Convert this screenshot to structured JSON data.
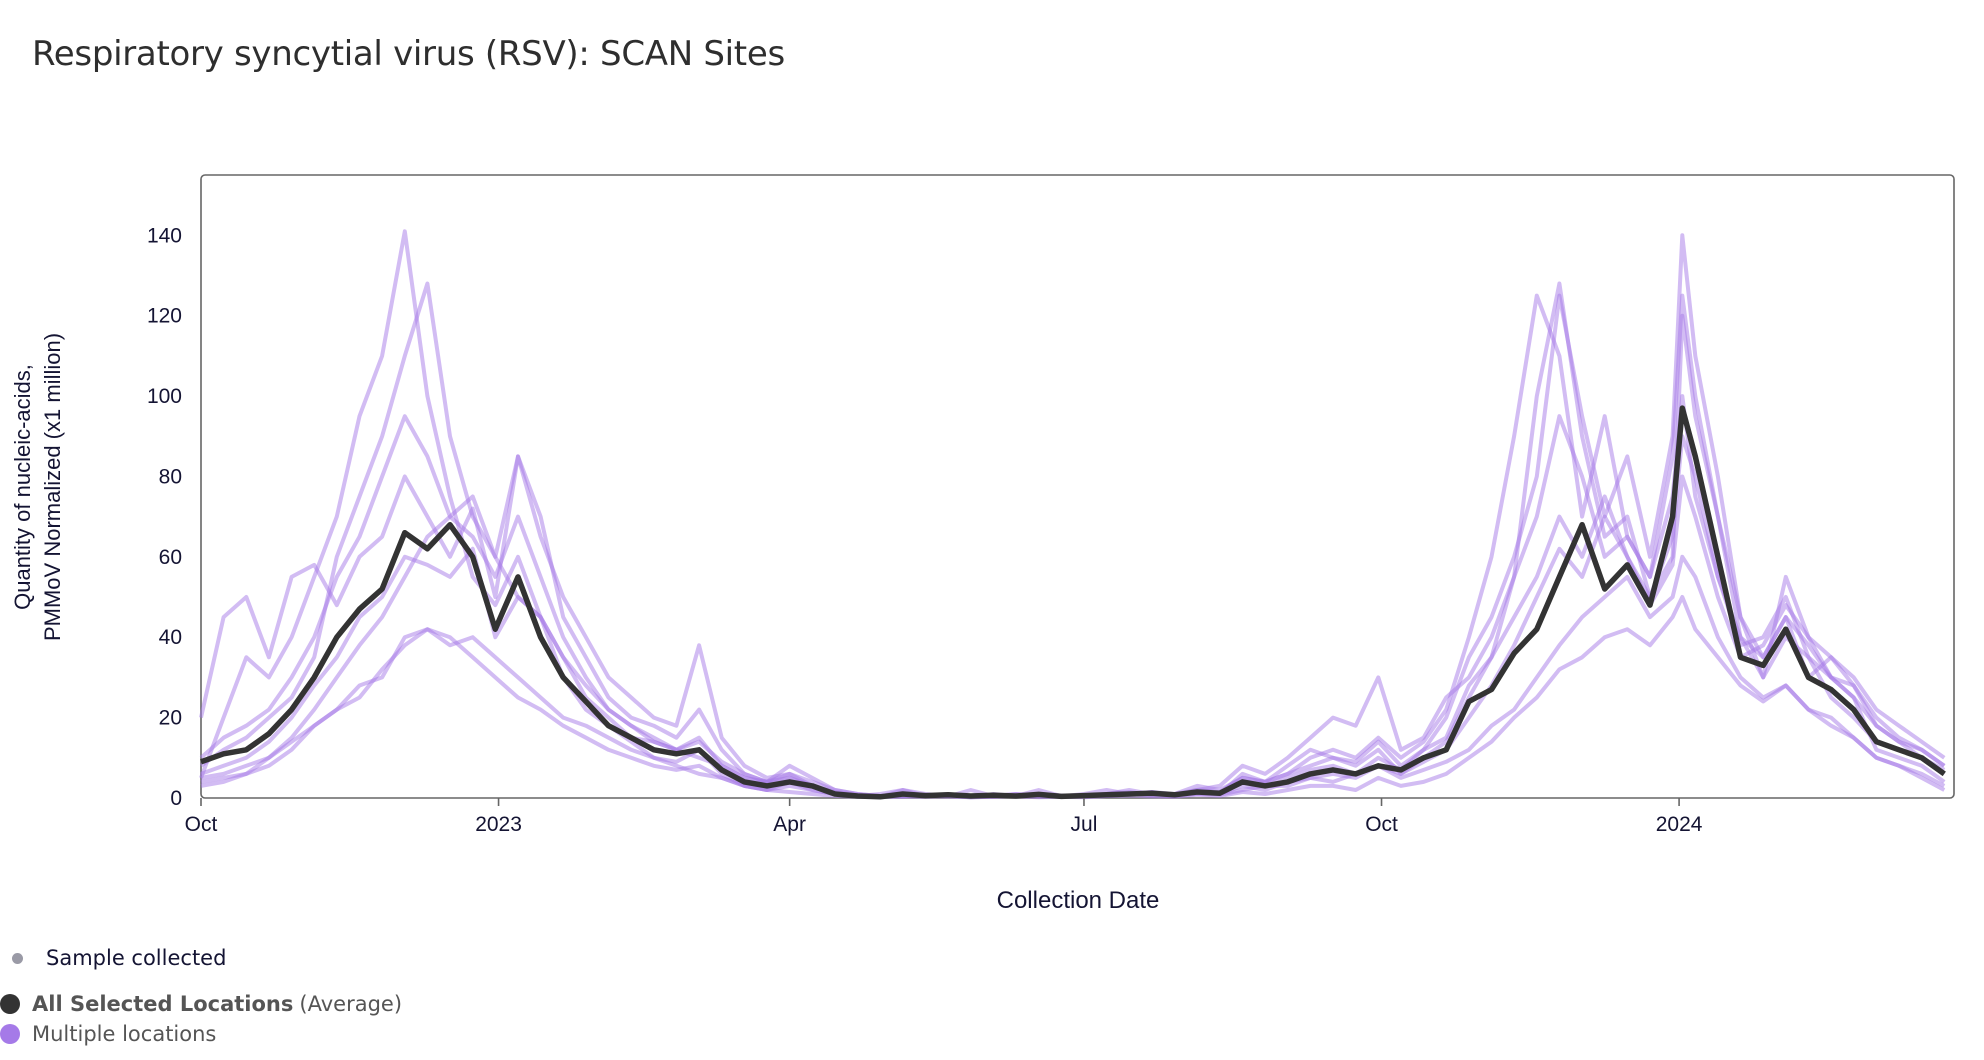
{
  "title": "Respiratory syncytial virus (RSV): SCAN Sites",
  "legend": {
    "sample_collected": "Sample collected",
    "average_bold": "All Selected Locations",
    "average_suffix": "(Average)",
    "multiple": "Multiple locations"
  },
  "colors": {
    "average": "#333333",
    "locations": "#a57ae8",
    "sample_dot": "#9a9aa6",
    "axis": "#666666"
  },
  "chart_data": {
    "type": "line",
    "xlabel": "Collection Date",
    "ylabel": [
      "Quantity of nucleic-acids,",
      "PMMoV Normalized (x1 million)"
    ],
    "ylim": [
      0,
      155
    ],
    "xlim": [
      "2022-10-01",
      "2024-03-26"
    ],
    "yticks": [
      0,
      20,
      40,
      60,
      80,
      100,
      120,
      140
    ],
    "xticks": [
      {
        "date": "2022-10-01",
        "label": "Oct"
      },
      {
        "date": "2023-01-01",
        "label": "2023"
      },
      {
        "date": "2023-04-01",
        "label": "Apr"
      },
      {
        "date": "2023-07-01",
        "label": "Jul"
      },
      {
        "date": "2023-10-01",
        "label": "Oct"
      },
      {
        "date": "2024-01-01",
        "label": "2024"
      }
    ],
    "grid": false,
    "legend_placement": "bottom-left",
    "x": [
      "2022-10-01",
      "2022-10-08",
      "2022-10-15",
      "2022-10-22",
      "2022-10-29",
      "2022-11-05",
      "2022-11-12",
      "2022-11-19",
      "2022-11-26",
      "2022-12-03",
      "2022-12-10",
      "2022-12-17",
      "2022-12-24",
      "2022-12-31",
      "2023-01-07",
      "2023-01-14",
      "2023-01-21",
      "2023-01-28",
      "2023-02-04",
      "2023-02-11",
      "2023-02-18",
      "2023-02-25",
      "2023-03-04",
      "2023-03-11",
      "2023-03-18",
      "2023-03-25",
      "2023-04-01",
      "2023-04-08",
      "2023-04-15",
      "2023-04-22",
      "2023-04-29",
      "2023-05-06",
      "2023-05-13",
      "2023-05-20",
      "2023-05-27",
      "2023-06-03",
      "2023-06-10",
      "2023-06-17",
      "2023-06-24",
      "2023-07-01",
      "2023-07-08",
      "2023-07-15",
      "2023-07-22",
      "2023-07-29",
      "2023-08-05",
      "2023-08-12",
      "2023-08-19",
      "2023-08-26",
      "2023-09-02",
      "2023-09-09",
      "2023-09-16",
      "2023-09-23",
      "2023-09-30",
      "2023-10-07",
      "2023-10-14",
      "2023-10-21",
      "2023-10-28",
      "2023-11-04",
      "2023-11-11",
      "2023-11-18",
      "2023-11-25",
      "2023-12-02",
      "2023-12-09",
      "2023-12-16",
      "2023-12-23",
      "2023-12-30",
      "2024-01-02",
      "2024-01-06",
      "2024-01-13",
      "2024-01-20",
      "2024-01-27",
      "2024-02-03",
      "2024-02-10",
      "2024-02-17",
      "2024-02-24",
      "2024-03-02",
      "2024-03-09",
      "2024-03-16",
      "2024-03-23"
    ],
    "series": [
      {
        "name": "All Selected Locations (Average)",
        "role": "average",
        "values": [
          9,
          11,
          12,
          16,
          22,
          30,
          40,
          47,
          52,
          66,
          62,
          68,
          60,
          42,
          55,
          40,
          30,
          24,
          18,
          15,
          12,
          11,
          12,
          7,
          4,
          3,
          4,
          3,
          1,
          0.5,
          0.3,
          1,
          0.6,
          0.8,
          0.5,
          0.7,
          0.5,
          0.9,
          0.4,
          0.6,
          0.8,
          1,
          1.2,
          0.8,
          1.5,
          1.2,
          4,
          3,
          4,
          6,
          7,
          6,
          8,
          7,
          10,
          12,
          24,
          27,
          36,
          42,
          55,
          68,
          52,
          58,
          48,
          70,
          97,
          85,
          60,
          35,
          33,
          42,
          30,
          27,
          22,
          14,
          12,
          10,
          6
        ]
      },
      {
        "role": "location",
        "values": [
          5,
          20,
          35,
          30,
          40,
          55,
          70,
          95,
          110,
          141,
          100,
          75,
          55,
          48,
          60,
          45,
          30,
          22,
          18,
          14,
          10,
          9,
          12,
          6,
          3,
          2,
          4,
          2,
          1,
          0.5,
          0.3,
          2,
          1,
          0.5,
          0.3,
          1,
          0.5,
          2,
          0.5,
          0.3,
          1,
          2,
          1,
          0.5,
          2,
          1,
          6,
          4,
          8,
          12,
          10,
          9,
          14,
          8,
          12,
          20,
          35,
          45,
          60,
          80,
          125,
          95,
          70,
          85,
          60,
          90,
          140,
          110,
          80,
          45,
          30,
          55,
          40,
          30,
          25,
          12,
          10,
          8,
          4
        ]
      },
      {
        "role": "location",
        "values": [
          20,
          45,
          50,
          35,
          55,
          58,
          48,
          60,
          65,
          80,
          70,
          60,
          72,
          50,
          85,
          70,
          45,
          35,
          25,
          20,
          18,
          15,
          22,
          12,
          6,
          4,
          8,
          5,
          2,
          1,
          0.5,
          1,
          0.6,
          0.4,
          2,
          0.5,
          1,
          0.6,
          0.4,
          1,
          2,
          1,
          1.5,
          0.6,
          2,
          3,
          8,
          6,
          10,
          15,
          20,
          18,
          30,
          12,
          15,
          25,
          30,
          40,
          55,
          70,
          95,
          80,
          60,
          65,
          55,
          75,
          100,
          75,
          55,
          40,
          35,
          45,
          30,
          35,
          28,
          20,
          15,
          12,
          8
        ]
      },
      {
        "role": "location",
        "values": [
          4,
          5,
          6,
          8,
          12,
          18,
          22,
          28,
          30,
          40,
          42,
          38,
          40,
          35,
          30,
          25,
          20,
          18,
          15,
          12,
          10,
          8,
          6,
          5,
          3,
          2,
          1.5,
          1,
          0.5,
          0.3,
          0.5,
          0.3,
          0.6,
          0.4,
          0.2,
          0.5,
          0.3,
          0.6,
          0.4,
          0.5,
          0.8,
          1,
          0.6,
          0.5,
          1,
          0.8,
          2,
          3,
          3,
          5,
          4,
          6,
          8,
          5,
          7,
          9,
          12,
          18,
          22,
          30,
          38,
          45,
          50,
          55,
          45,
          50,
          60,
          55,
          40,
          30,
          25,
          28,
          22,
          20,
          15,
          10,
          8,
          5,
          2
        ]
      },
      {
        "role": "location",
        "values": [
          8,
          12,
          15,
          20,
          25,
          35,
          60,
          75,
          90,
          110,
          128,
          90,
          70,
          60,
          50,
          45,
          35,
          25,
          20,
          15,
          14,
          12,
          10,
          8,
          5,
          4,
          5,
          3,
          1,
          0.5,
          1,
          2,
          0.5,
          1,
          0.3,
          0.5,
          1,
          0.4,
          0.6,
          0.5,
          1,
          1.5,
          0.8,
          1,
          3,
          2,
          5,
          4,
          6,
          8,
          10,
          8,
          12,
          6,
          10,
          14,
          25,
          35,
          55,
          100,
          128,
          90,
          65,
          70,
          50,
          60,
          120,
          95,
          70,
          40,
          30,
          40,
          35,
          25,
          20,
          14,
          12,
          10,
          6
        ]
      },
      {
        "role": "location",
        "values": [
          6,
          8,
          10,
          14,
          20,
          28,
          35,
          45,
          50,
          60,
          58,
          55,
          62,
          40,
          50,
          45,
          35,
          28,
          22,
          18,
          14,
          12,
          15,
          8,
          5,
          4,
          6,
          4,
          2,
          1,
          0.5,
          1,
          0.8,
          0.6,
          0.4,
          0.8,
          0.5,
          1,
          0.6,
          0.3,
          0.5,
          1,
          1.2,
          0.8,
          1.5,
          1,
          4,
          3,
          5,
          7,
          8,
          6,
          10,
          7,
          12,
          15,
          28,
          35,
          45,
          55,
          70,
          60,
          75,
          60,
          50,
          65,
          90,
          80,
          55,
          38,
          40,
          50,
          35,
          30,
          28,
          18,
          14,
          12,
          8
        ]
      },
      {
        "role": "location",
        "values": [
          3,
          4,
          6,
          10,
          15,
          22,
          30,
          38,
          45,
          55,
          65,
          70,
          75,
          60,
          85,
          65,
          50,
          40,
          30,
          25,
          20,
          18,
          38,
          15,
          8,
          5,
          6,
          3,
          1,
          0.5,
          0.3,
          0.5,
          0.4,
          0.6,
          0.2,
          0.3,
          0.5,
          0.8,
          0.4,
          0.5,
          0.6,
          0.8,
          1,
          0.6,
          1.2,
          1,
          3,
          2,
          4,
          5,
          6,
          5,
          8,
          6,
          9,
          12,
          20,
          28,
          38,
          50,
          62,
          55,
          70,
          60,
          48,
          58,
          80,
          70,
          50,
          35,
          38,
          48,
          40,
          35,
          30,
          22,
          18,
          14,
          10
        ]
      },
      {
        "role": "location",
        "values": [
          5,
          6,
          8,
          10,
          14,
          18,
          22,
          25,
          32,
          38,
          42,
          40,
          35,
          30,
          25,
          22,
          18,
          15,
          12,
          10,
          8,
          7,
          8,
          5,
          3,
          2,
          3,
          2,
          1,
          0.4,
          0.2,
          0.4,
          0.3,
          0.5,
          0.2,
          0.3,
          0.4,
          0.2,
          0.3,
          0.2,
          0.5,
          0.6,
          0.4,
          0.3,
          0.8,
          0.5,
          1.5,
          1,
          2,
          3,
          3,
          2,
          5,
          3,
          4,
          6,
          10,
          14,
          20,
          25,
          32,
          35,
          40,
          42,
          38,
          45,
          50,
          42,
          35,
          28,
          24,
          28,
          22,
          18,
          15,
          10,
          8,
          6,
          3
        ]
      },
      {
        "role": "location",
        "values": [
          10,
          15,
          18,
          22,
          30,
          40,
          55,
          65,
          80,
          95,
          85,
          70,
          65,
          55,
          70,
          55,
          40,
          30,
          22,
          18,
          15,
          12,
          14,
          9,
          6,
          4,
          5,
          3,
          1.5,
          0.8,
          0.5,
          1,
          0.6,
          0.8,
          0.4,
          0.6,
          0.5,
          1,
          0.6,
          0.4,
          0.8,
          1,
          1.5,
          1,
          2,
          1.5,
          5,
          4,
          6,
          10,
          12,
          10,
          15,
          10,
          14,
          22,
          40,
          60,
          90,
          125,
          110,
          70,
          95,
          65,
          55,
          85,
          125,
          100,
          70,
          45,
          35,
          45,
          38,
          30,
          25,
          18,
          14,
          10,
          7
        ]
      }
    ]
  }
}
